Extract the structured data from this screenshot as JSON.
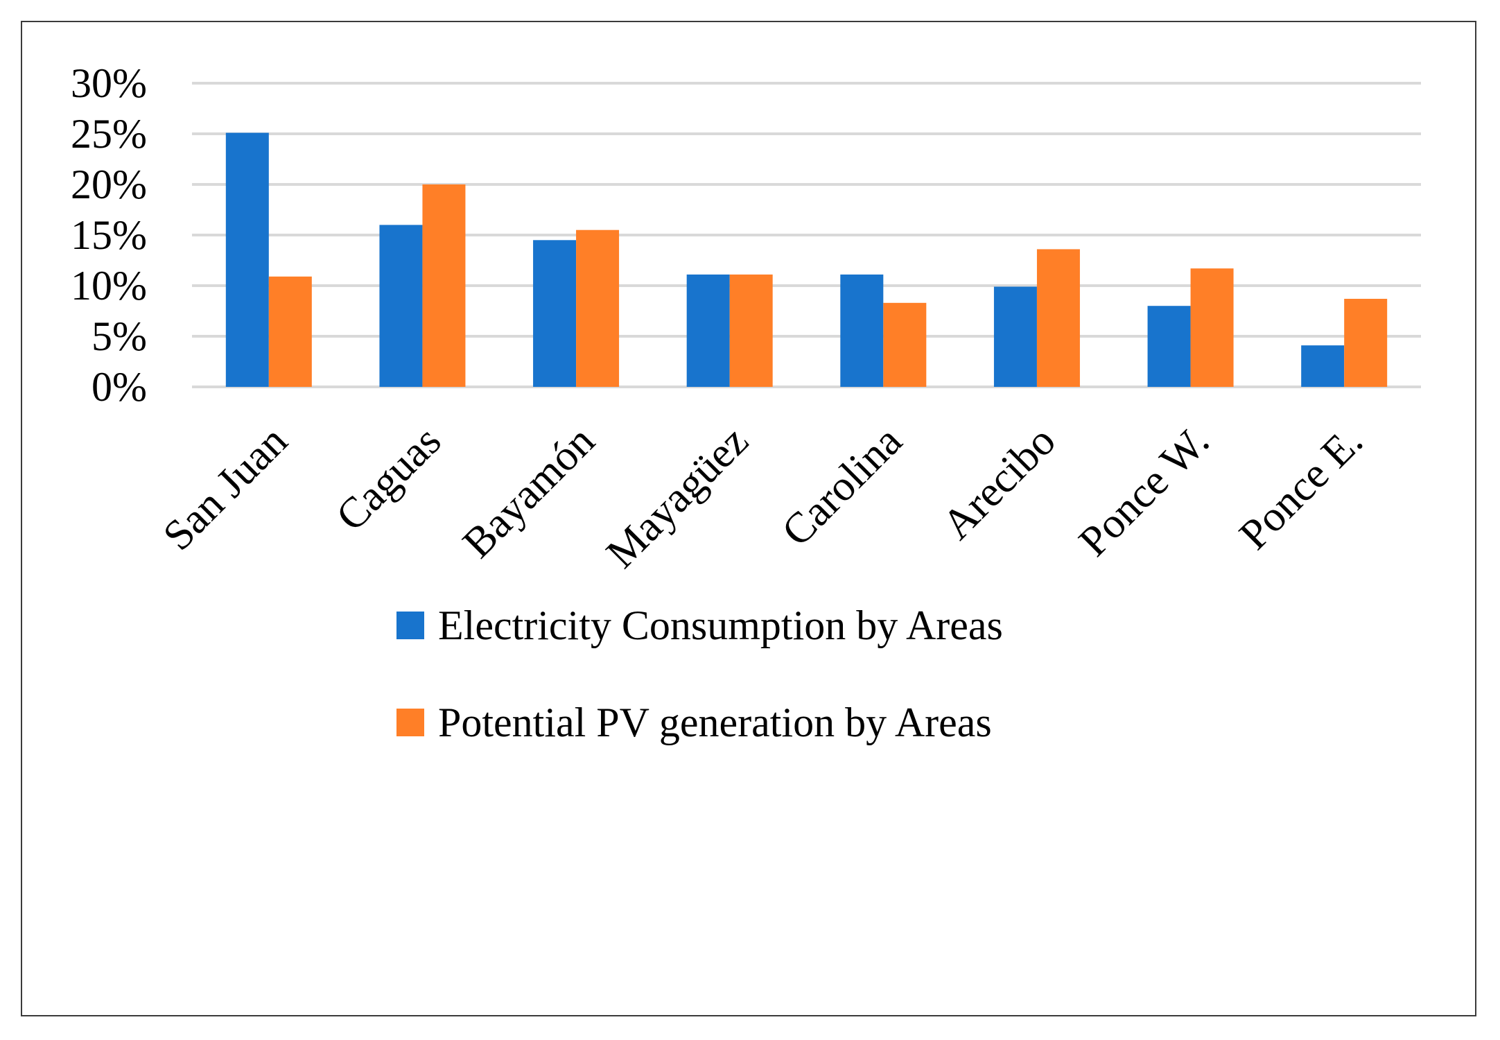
{
  "chart_data": {
    "type": "bar",
    "title": "",
    "xlabel": "",
    "ylabel": "",
    "ylim": [
      0,
      30
    ],
    "yticks": [
      0,
      5,
      10,
      15,
      20,
      25,
      30
    ],
    "ytick_labels": [
      "0%",
      "5%",
      "10%",
      "15%",
      "20%",
      "25%",
      "30%"
    ],
    "grid": true,
    "legend_position": "bottom",
    "categories": [
      "San Juan",
      "Caguas",
      "Bayamón",
      "Mayagüez",
      "Carolina",
      "Arecibo",
      "Ponce W.",
      "Ponce E."
    ],
    "series": [
      {
        "name": "Electricity Consumption by Areas",
        "color": "#1874CD",
        "values": [
          25.1,
          16.0,
          14.5,
          11.1,
          11.1,
          9.9,
          8.0,
          4.1
        ]
      },
      {
        "name": "Potential PV generation by Areas",
        "color": "#FF7F27",
        "values": [
          10.9,
          20.0,
          15.5,
          11.1,
          8.3,
          13.6,
          11.7,
          8.7
        ]
      }
    ]
  }
}
